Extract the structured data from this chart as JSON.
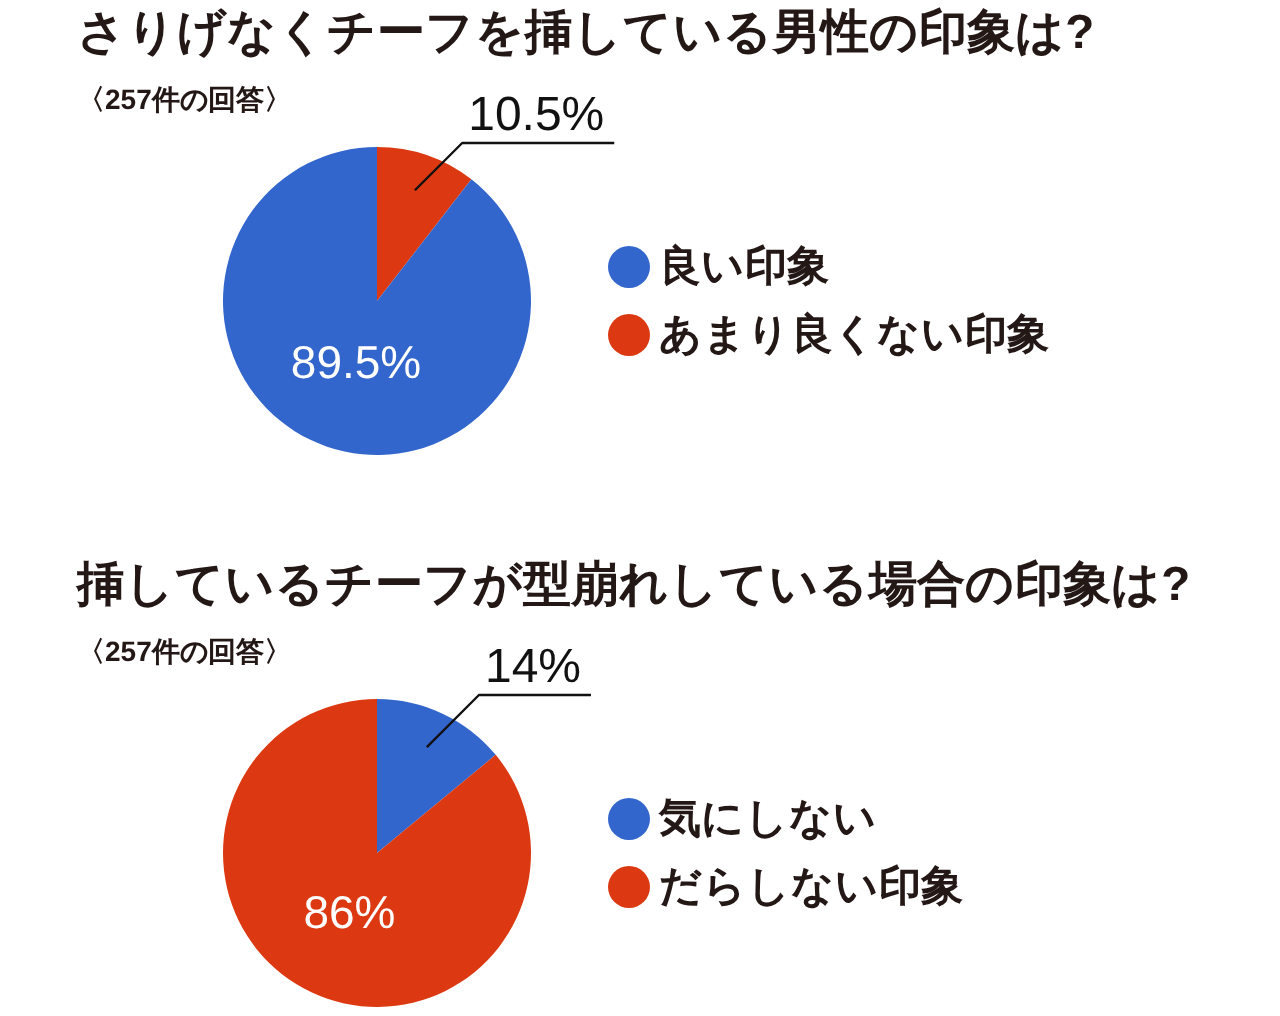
{
  "chart_data": [
    {
      "type": "pie",
      "title": "さりげなくチーフを挿している男性の印象は?",
      "subtitle": "〈257件の回答〉",
      "categories": [
        "良い印象",
        "あまり良くない印象"
      ],
      "values": [
        89.5,
        10.5
      ],
      "colors": [
        "#3366cc",
        "#dc3912"
      ],
      "value_labels": [
        "89.5%",
        "10.5%"
      ],
      "legend": "right"
    },
    {
      "type": "pie",
      "title": "挿しているチーフが型崩れしている場合の印象は?",
      "subtitle": "〈257件の回答〉",
      "categories": [
        "気にしない",
        "だらしない印象"
      ],
      "values": [
        14,
        86
      ],
      "colors": [
        "#3366cc",
        "#dc3912"
      ],
      "value_labels": [
        "14%",
        "86%"
      ],
      "legend": "right"
    }
  ]
}
